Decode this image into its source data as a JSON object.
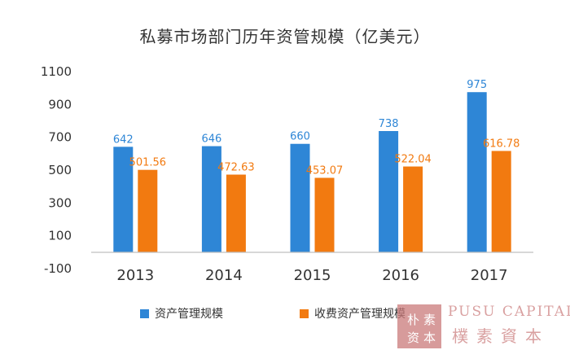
{
  "chart_data": {
    "type": "bar",
    "title": "私募市场部门历年资管规模（亿美元）",
    "categories": [
      "2013",
      "2014",
      "2015",
      "2016",
      "2017"
    ],
    "series": [
      {
        "name": "资产管理规模",
        "values": [
          642,
          646,
          660,
          738,
          975
        ],
        "labels": [
          "642",
          "646",
          "660",
          "738",
          "975"
        ],
        "color": "#2e86d6"
      },
      {
        "name": "收费资产管理规模",
        "values": [
          501.56,
          472.63,
          453.07,
          522.04,
          616.78
        ],
        "labels": [
          "501.56",
          "472.63",
          "453.07",
          "522.04",
          "616.78"
        ],
        "color": "#f27a10"
      }
    ],
    "yticks": [
      "1100",
      "900",
      "700",
      "500",
      "300",
      "100",
      "-100"
    ],
    "ylim": [
      -100,
      1100
    ],
    "legend_position": "bottom",
    "grid": false
  },
  "watermark": {
    "seal_text": "朴素资本",
    "english": "PUSU CAPITAL",
    "chinese": "樸素資本"
  }
}
